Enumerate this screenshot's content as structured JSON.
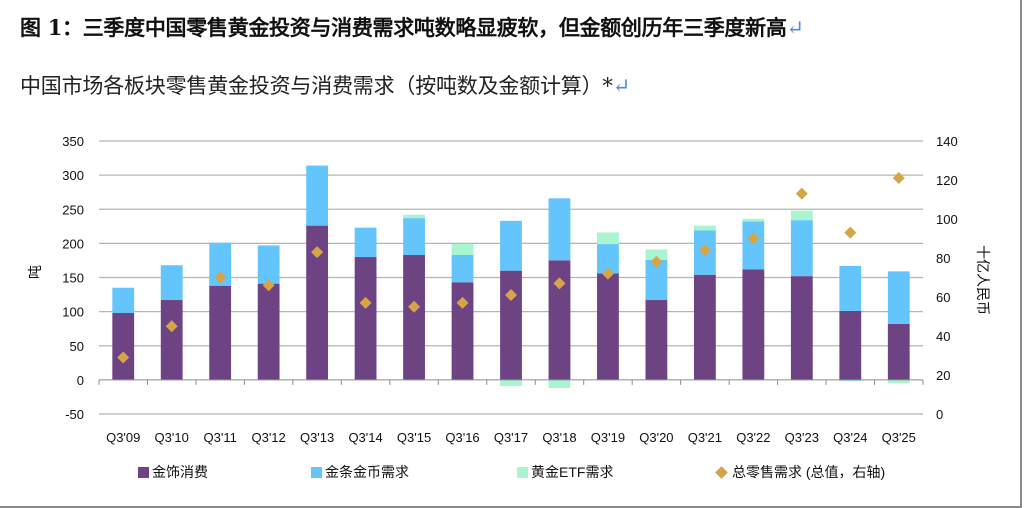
{
  "header": {
    "title": "图 1：三季度中国零售黄金投资与消费需求吨数略显疲软，但金额创历年三季度新高",
    "subtitle": "中国市场各板块零售黄金投资与消费需求（按吨数及金额计算）*",
    "paragraph_mark": "↵"
  },
  "chart_data": {
    "type": "bar",
    "stacked": true,
    "title": "中国市场各板块零售黄金投资与消费需求（按吨数及金额计算）*",
    "categories": [
      "Q3'09",
      "Q3'10",
      "Q3'11",
      "Q3'12",
      "Q3'13",
      "Q3'14",
      "Q3'15",
      "Q3'16",
      "Q3'17",
      "Q3'18",
      "Q3'19",
      "Q3'20",
      "Q3'21",
      "Q3'22",
      "Q3'23",
      "Q3'24",
      "Q3'25"
    ],
    "ylabel": "吨",
    "y2label": "十亿人民币",
    "ylim": [
      -50,
      350
    ],
    "y2lim": [
      0,
      140
    ],
    "yticks": [
      350,
      300,
      250,
      200,
      150,
      100,
      50,
      0,
      -50
    ],
    "y2ticks": [
      140,
      120,
      100,
      80,
      60,
      40,
      20,
      0
    ],
    "grid": true,
    "legend_position": "bottom",
    "series": [
      {
        "name": "金饰消费",
        "axis": "left",
        "kind": "bar",
        "color": "#6e4384",
        "values": [
          98,
          117,
          138,
          141,
          226,
          180,
          183,
          143,
          160,
          175,
          156,
          117,
          154,
          162,
          152,
          101,
          82
        ]
      },
      {
        "name": "金条金币需求",
        "axis": "left",
        "kind": "bar",
        "color": "#63c5fb",
        "values": [
          37,
          51,
          63,
          56,
          88,
          43,
          54,
          40,
          73,
          91,
          43,
          59,
          65,
          70,
          82,
          66,
          77
        ]
      },
      {
        "name": "黄金ETF需求",
        "axis": "left",
        "kind": "bar",
        "color": "#a8f5cf",
        "values": [
          0,
          0,
          0,
          0,
          0,
          0,
          5,
          16,
          -9,
          -12,
          17,
          15,
          7,
          4,
          14,
          -2,
          -5
        ]
      },
      {
        "name": "总零售需求 (总值，右轴)",
        "axis": "right",
        "kind": "scatter",
        "marker": "diamond",
        "color": "#d6a548",
        "values": [
          29,
          45,
          70,
          66,
          83,
          57,
          55,
          57,
          61,
          67,
          72,
          78,
          84,
          90,
          113,
          93,
          121
        ]
      }
    ]
  }
}
